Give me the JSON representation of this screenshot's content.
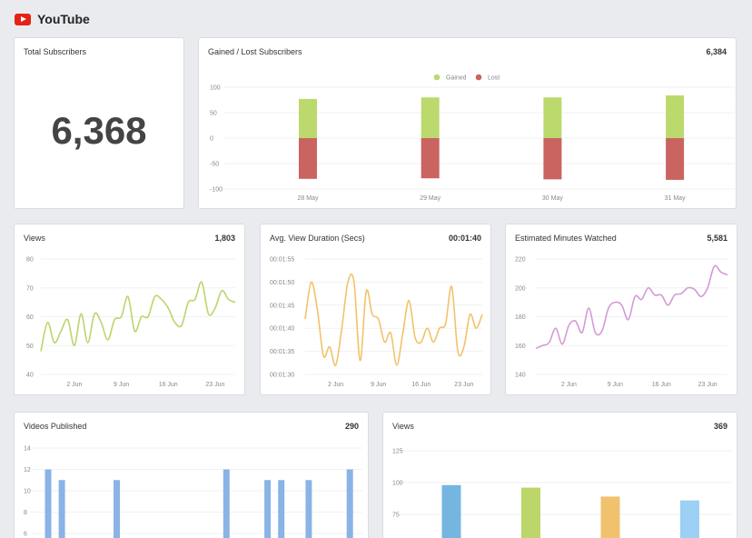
{
  "header": {
    "title": "YouTube",
    "logo_icon": "youtube-play-icon"
  },
  "total_subscribers": {
    "title": "Total Subscribers",
    "value": "6,368"
  },
  "gained_lost": {
    "title": "Gained / Lost Subscribers",
    "total": "6,384",
    "chart_data": {
      "type": "bar",
      "stacked": true,
      "categories": [
        "28 May",
        "29 May",
        "30 May",
        "31 May"
      ],
      "series": [
        {
          "name": "Gained",
          "color": "#bcd96e",
          "values": [
            77,
            80,
            80,
            84
          ]
        },
        {
          "name": "Lost",
          "color": "#c96461",
          "values": [
            -80,
            -79,
            -81,
            -82
          ]
        }
      ],
      "ylim": [
        -100,
        100
      ],
      "yticks": [
        "100",
        "50",
        "0",
        "-50",
        "-100"
      ],
      "legend": "top-center",
      "grid": true
    }
  },
  "views_line": {
    "title": "Views",
    "total": "1,803",
    "chart_data": {
      "type": "line",
      "color": "#b9d66a",
      "xticks": [
        "2 Jun",
        "9 Jun",
        "16 Jun",
        "23 Jun"
      ],
      "ylim": [
        40,
        80
      ],
      "yticks": [
        "80",
        "70",
        "60",
        "50",
        "40"
      ],
      "values": [
        48,
        58,
        51,
        55,
        59,
        50,
        61,
        51,
        61,
        58,
        52,
        59,
        60,
        67,
        55,
        60,
        60,
        67,
        66,
        63,
        58,
        57,
        65,
        66,
        72,
        61,
        63,
        69,
        66,
        65
      ]
    }
  },
  "duration_line": {
    "title": "Avg. View Duration (Secs)",
    "total": "00:01:40",
    "chart_data": {
      "type": "line",
      "color": "#f2c26a",
      "xticks": [
        "2 Jun",
        "9 Jun",
        "16 Jun",
        "23 Jun"
      ],
      "ylim": [
        90,
        115
      ],
      "yticks": [
        "00:01:55",
        "00:01:50",
        "00:01:45",
        "00:01:40",
        "00:01:35",
        "00:01:30"
      ],
      "values": [
        102,
        110,
        104,
        94,
        96,
        92,
        100,
        110,
        110,
        93,
        108,
        103,
        102,
        97,
        99,
        92,
        99,
        106,
        98,
        97,
        100,
        97,
        100,
        101,
        109,
        95,
        96,
        103,
        100,
        103
      ]
    }
  },
  "minutes_line": {
    "title": "Estimated Minutes Watched",
    "total": "5,581",
    "chart_data": {
      "type": "line",
      "color": "#d39ad6",
      "xticks": [
        "2 Jun",
        "9 Jun",
        "16 Jun",
        "23 Jun"
      ],
      "ylim": [
        140,
        220
      ],
      "yticks": [
        "220",
        "200",
        "180",
        "160",
        "140"
      ],
      "values": [
        158,
        160,
        162,
        172,
        161,
        174,
        177,
        169,
        186,
        169,
        170,
        186,
        190,
        188,
        178,
        194,
        192,
        200,
        195,
        195,
        188,
        195,
        196,
        200,
        199,
        194,
        200,
        215,
        211,
        209
      ]
    }
  },
  "videos_published": {
    "title": "Videos Published",
    "total": "290",
    "chart_data": {
      "type": "bar",
      "color": "#8ab3e6",
      "ylim": [
        6,
        14
      ],
      "yticks": [
        "14",
        "12",
        "10",
        "8",
        "6"
      ],
      "values": [
        12,
        11,
        null,
        null,
        null,
        11,
        null,
        null,
        null,
        null,
        null,
        null,
        null,
        12,
        null,
        null,
        11,
        11,
        null,
        11,
        null,
        null,
        12
      ]
    }
  },
  "views_bar": {
    "title": "Views",
    "total": "369",
    "chart_data": {
      "type": "bar",
      "ylim": [
        75,
        125
      ],
      "yticks": [
        "125",
        "100",
        "75"
      ],
      "values": [
        98,
        96,
        89,
        86
      ],
      "colors": [
        "#74b6e0",
        "#bcd66a",
        "#f0c26e",
        "#9dd0f5"
      ]
    }
  }
}
